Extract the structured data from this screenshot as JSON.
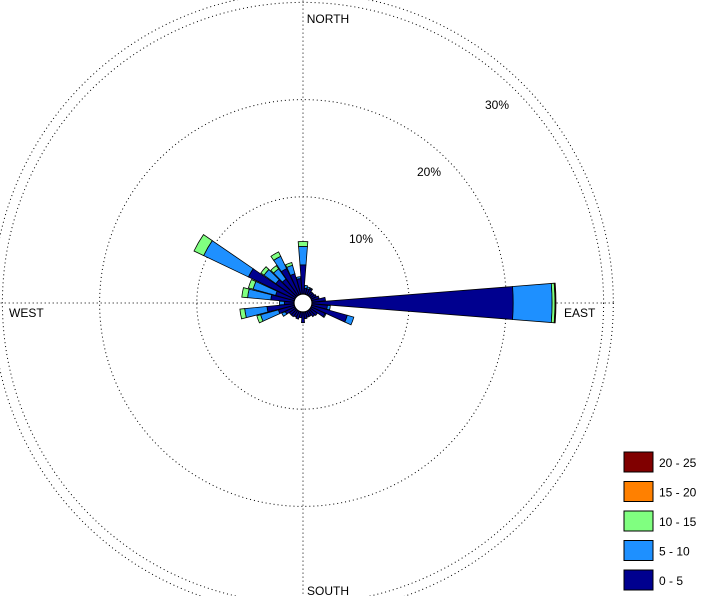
{
  "chart_data": {
    "type": "windrose",
    "directions": {
      "north": "NORTH",
      "south": "SOUTH",
      "east": "EAST",
      "west": "WEST"
    },
    "radial_ticks": [
      {
        "value": 10,
        "label": "10%"
      },
      {
        "value": 20,
        "label": "20%"
      },
      {
        "value": 30,
        "label": "30%"
      }
    ],
    "rmax": 31,
    "grid": true,
    "legend_position": "bottom-right",
    "bins": [
      {
        "label": "0 - 5",
        "color": "#00008f"
      },
      {
        "label": "5 - 10",
        "color": "#1e90ff"
      },
      {
        "label": "10 - 15",
        "color": "#80ff80"
      },
      {
        "label": "15 - 20",
        "color": "#ff8000"
      },
      {
        "label": "20 - 25",
        "color": "#800000"
      }
    ],
    "sectors": [
      {
        "dir": 0,
        "values": [
          3.0,
          1.9,
          0.5,
          0,
          0
        ]
      },
      {
        "dir": 10,
        "values": [
          0.6,
          0.3,
          0,
          0,
          0
        ]
      },
      {
        "dir": 20,
        "values": [
          0.6,
          0.2,
          0,
          0,
          0
        ]
      },
      {
        "dir": 30,
        "values": [
          0.7,
          0.1,
          0,
          0,
          0
        ]
      },
      {
        "dir": 40,
        "values": [
          0.5,
          0,
          0,
          0,
          0
        ]
      },
      {
        "dir": 50,
        "values": [
          0.5,
          0,
          0,
          0,
          0
        ]
      },
      {
        "dir": 60,
        "values": [
          0.6,
          0,
          0,
          0,
          0
        ]
      },
      {
        "dir": 70,
        "values": [
          0.8,
          0,
          0,
          0,
          0
        ]
      },
      {
        "dir": 80,
        "values": [
          1.4,
          0,
          0,
          0,
          0
        ]
      },
      {
        "dir": 90,
        "values": [
          20.7,
          4.0,
          0.3,
          0,
          0.1
        ]
      },
      {
        "dir": 100,
        "values": [
          1.6,
          0.3,
          0,
          0,
          0
        ]
      },
      {
        "dir": 110,
        "values": [
          3.8,
          0.7,
          0,
          0,
          0
        ]
      },
      {
        "dir": 120,
        "values": [
          1.6,
          0.1,
          0,
          0,
          0
        ]
      },
      {
        "dir": 130,
        "values": [
          0.9,
          0,
          0,
          0,
          0
        ]
      },
      {
        "dir": 140,
        "values": [
          0.8,
          0,
          0,
          0,
          0
        ]
      },
      {
        "dir": 150,
        "values": [
          0.6,
          0,
          0,
          0,
          0
        ]
      },
      {
        "dir": 160,
        "values": [
          0.6,
          0,
          0,
          0,
          0
        ]
      },
      {
        "dir": 170,
        "values": [
          0.7,
          0,
          0,
          0,
          0
        ]
      },
      {
        "dir": 180,
        "values": [
          1.1,
          0,
          0,
          0,
          0
        ]
      },
      {
        "dir": 190,
        "values": [
          0.6,
          0,
          0,
          0,
          0
        ]
      },
      {
        "dir": 200,
        "values": [
          0.8,
          0,
          0,
          0,
          0
        ]
      },
      {
        "dir": 210,
        "values": [
          0.7,
          0,
          0,
          0,
          0
        ]
      },
      {
        "dir": 220,
        "values": [
          0.8,
          0,
          0,
          0,
          0
        ]
      },
      {
        "dir": 230,
        "values": [
          0.8,
          0,
          0,
          0,
          0
        ]
      },
      {
        "dir": 240,
        "values": [
          1.1,
          0.4,
          0,
          0,
          0
        ]
      },
      {
        "dir": 250,
        "values": [
          1.7,
          1.9,
          0.4,
          0,
          0
        ]
      },
      {
        "dir": 260,
        "values": [
          2.8,
          2.3,
          0.5,
          0,
          0
        ]
      },
      {
        "dir": 270,
        "values": [
          1.0,
          0.5,
          0,
          0,
          0
        ]
      },
      {
        "dir": 280,
        "values": [
          2.4,
          2.4,
          0.6,
          0,
          0
        ]
      },
      {
        "dir": 290,
        "values": [
          2.0,
          2.4,
          0.5,
          0,
          0
        ]
      },
      {
        "dir": 300,
        "values": [
          5.3,
          5.1,
          1.1,
          0,
          0
        ]
      },
      {
        "dir": 310,
        "values": [
          2.5,
          1.5,
          0.4,
          0,
          0
        ]
      },
      {
        "dir": 320,
        "values": [
          2.1,
          1.3,
          0.4,
          0,
          0
        ]
      },
      {
        "dir": 330,
        "values": [
          3.0,
          1.4,
          0.5,
          0,
          0
        ]
      },
      {
        "dir": 340,
        "values": [
          2.2,
          0.9,
          0.3,
          0,
          0
        ]
      },
      {
        "dir": 350,
        "values": [
          1.6,
          0.2,
          0,
          0,
          0
        ]
      }
    ]
  }
}
